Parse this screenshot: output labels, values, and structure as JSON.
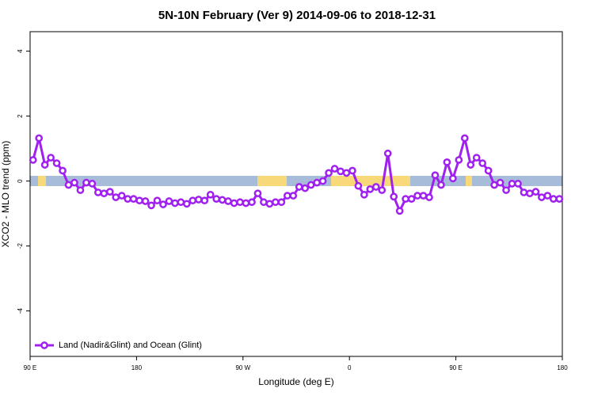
{
  "chart_data": {
    "type": "line",
    "title": "5N-10N February (Ver 9)   2014-09-06 to 2018-12-31",
    "xlabel": "Longitude (deg E)",
    "ylabel": "XCO2 - MLO trend (ppm)",
    "xlim": [
      90,
      540
    ],
    "ylim": [
      -5.4,
      4.6
    ],
    "xticks": [
      {
        "value": 90,
        "label": "90 E"
      },
      180,
      {
        "value": 270,
        "label": "90 W"
      },
      {
        "value": 360,
        "label": "0"
      },
      {
        "value": 450,
        "label": "90 E"
      },
      {
        "value": 540,
        "label": "180"
      }
    ],
    "yticks": [
      4,
      2,
      0,
      -2,
      -4
    ],
    "legend": "bottom-left",
    "x": [
      92.5,
      97.5,
      102.5,
      107.5,
      112.5,
      117.5,
      122.5,
      127.5,
      132.5,
      137.5,
      142.5,
      147.5,
      152.5,
      157.5,
      162.5,
      167.5,
      172.5,
      177.5,
      182.5,
      187.5,
      192.5,
      197.5,
      202.5,
      207.5,
      212.5,
      217.5,
      222.5,
      227.5,
      232.5,
      237.5,
      242.5,
      247.5,
      252.5,
      257.5,
      262.5,
      267.5,
      272.5,
      277.5,
      282.5,
      287.5,
      292.5,
      297.5,
      302.5,
      307.5,
      312.5,
      317.5,
      322.5,
      327.5,
      332.5,
      337.5,
      342.5,
      347.5,
      352.5,
      357.5,
      362.5,
      367.5,
      372.5,
      377.5,
      382.5,
      387.5,
      392.5,
      397.5,
      402.5,
      407.5,
      412.5,
      417.5,
      422.5,
      427.5,
      432.5,
      437.5,
      442.5,
      447.5,
      452.5,
      457.5,
      462.5,
      467.5,
      472.5,
      477.5,
      482.5,
      487.5,
      492.5,
      497.5,
      502.5,
      507.5,
      512.5,
      517.5,
      522.5,
      527.5,
      532.5,
      537.5
    ],
    "series": [
      {
        "name": "Land (Nadir&Glint) and Ocean (Glint)",
        "color": "#a020f0",
        "values": [
          0.65,
          1.32,
          0.5,
          0.72,
          0.55,
          0.32,
          -0.12,
          -0.05,
          -0.28,
          -0.05,
          -0.08,
          -0.35,
          -0.38,
          -0.33,
          -0.5,
          -0.45,
          -0.55,
          -0.55,
          -0.6,
          -0.62,
          -0.75,
          -0.6,
          -0.72,
          -0.62,
          -0.68,
          -0.65,
          -0.7,
          -0.6,
          -0.57,
          -0.6,
          -0.42,
          -0.55,
          -0.58,
          -0.62,
          -0.68,
          -0.65,
          -0.68,
          -0.65,
          -0.38,
          -0.65,
          -0.7,
          -0.65,
          -0.65,
          -0.45,
          -0.45,
          -0.18,
          -0.22,
          -0.12,
          -0.05,
          0.0,
          0.25,
          0.38,
          0.3,
          0.25,
          0.32,
          -0.15,
          -0.42,
          -0.25,
          -0.18,
          -0.28,
          0.85,
          -0.48,
          -0.92,
          -0.55,
          -0.55,
          -0.45,
          -0.45,
          -0.5,
          0.18,
          -0.12,
          0.58,
          0.08,
          0.65,
          1.32,
          0.5,
          0.72,
          0.55,
          0.32,
          -0.12,
          -0.05,
          -0.28,
          -0.08,
          -0.08,
          -0.35,
          -0.38,
          -0.33,
          -0.5,
          -0.45,
          -0.55,
          -0.55
        ]
      }
    ]
  }
}
